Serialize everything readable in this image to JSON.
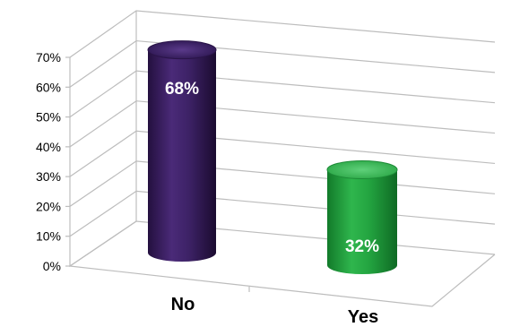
{
  "chart_data": {
    "type": "bar",
    "style": "3d-cylinder",
    "categories": [
      "No",
      "Yes"
    ],
    "values": [
      68,
      32
    ],
    "data_labels": [
      "68%",
      "32%"
    ],
    "y_ticks": [
      "0%",
      "10%",
      "20%",
      "30%",
      "40%",
      "50%",
      "60%",
      "70%"
    ],
    "ylim": [
      0,
      70
    ],
    "grid": true,
    "legend": "none",
    "colors": {
      "No": "#3a1f5e",
      "Yes": "#1e9b3c",
      "grid": "#bdbdbd"
    }
  }
}
